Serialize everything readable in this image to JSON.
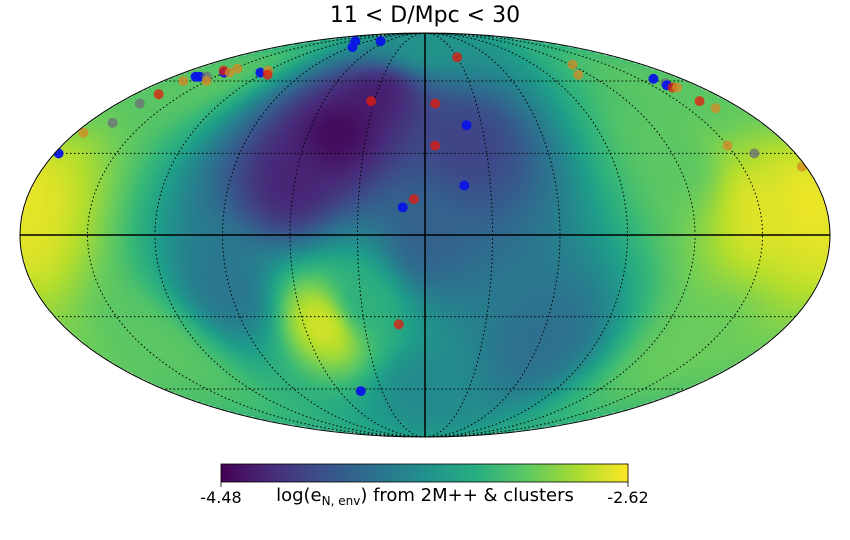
{
  "chart_data": {
    "type": "heatmap",
    "title": "11 < D/Mpc < 30",
    "projection": "mollweide",
    "colormap": "viridis",
    "colorbar": {
      "min": -4.48,
      "max": -2.62,
      "min_label": "-4.48",
      "max_label": "-2.62",
      "label_prefix": "log(e",
      "label_subscript": "N, env",
      "label_suffix": ") from 2M++ & clusters"
    },
    "grid": true,
    "colors": {
      "blue": "#0a14e6",
      "red": "#e61a0a",
      "orange": "#d68a26",
      "gray": "#6e6e78"
    },
    "field_peaks": [
      {
        "lon": 0,
        "lat": 0,
        "level": -3.9
      },
      {
        "lon": 45,
        "lat": 38,
        "level": -4.45
      },
      {
        "lon": 60,
        "lat": 20,
        "level": -4.3
      },
      {
        "lon": 30,
        "lat": 55,
        "level": -4.35
      },
      {
        "lon": -20,
        "lat": 35,
        "level": -4.1
      },
      {
        "lon": 90,
        "lat": -20,
        "level": -3.75
      },
      {
        "lon": 50,
        "lat": -33,
        "level": -2.7
      },
      {
        "lon": 30,
        "lat": -25,
        "level": -3.3
      },
      {
        "lon": -150,
        "lat": 8,
        "level": -2.7
      },
      {
        "lon": -175,
        "lat": 10,
        "level": -2.65
      },
      {
        "lon": 178,
        "lat": 5,
        "level": -2.7
      },
      {
        "lon": -120,
        "lat": 30,
        "level": -3.1
      },
      {
        "lon": 140,
        "lat": -40,
        "level": -3.1
      },
      {
        "lon": -140,
        "lat": -40,
        "level": -3.05
      },
      {
        "lon": 0,
        "lat": -60,
        "level": -3.6
      },
      {
        "lon": 0,
        "lat": 75,
        "level": -3.5
      },
      {
        "lon": 150,
        "lat": 60,
        "level": -3.1
      },
      {
        "lon": -150,
        "lat": 55,
        "level": -3.1
      },
      {
        "lon": -60,
        "lat": -40,
        "level": -3.8
      }
    ],
    "points": [
      {
        "lon": 161,
        "lat": 62,
        "color": "blue"
      },
      {
        "lon": 164,
        "lat": 62,
        "color": "blue"
      },
      {
        "lon": 150,
        "lat": 64,
        "color": "blue"
      },
      {
        "lon": 154,
        "lat": 65,
        "color": "red"
      },
      {
        "lon": 156,
        "lat": 62,
        "color": "gray"
      },
      {
        "lon": 146,
        "lat": 64,
        "color": "orange"
      },
      {
        "lon": 165,
        "lat": 54,
        "color": "red"
      },
      {
        "lon": 167,
        "lat": 50,
        "color": "gray"
      },
      {
        "lon": 178,
        "lat": 30,
        "color": "blue"
      },
      {
        "lon": 176,
        "lat": 38,
        "color": "orange"
      },
      {
        "lon": 167,
        "lat": 42,
        "color": "gray"
      },
      {
        "lon": 123,
        "lat": 64,
        "color": "blue"
      },
      {
        "lon": 110,
        "lat": 82,
        "color": "blue"
      },
      {
        "lon": 70,
        "lat": 82,
        "color": "blue"
      },
      {
        "lon": 88,
        "lat": 78,
        "color": "blue"
      },
      {
        "lon": 120,
        "lat": 65,
        "color": "orange"
      },
      {
        "lon": 115,
        "lat": 63,
        "color": "red"
      },
      {
        "lon": 166,
        "lat": 60,
        "color": "orange"
      },
      {
        "lon": 150,
        "lat": 60,
        "color": "orange"
      },
      {
        "lon": 147,
        "lat": 66,
        "color": "orange"
      },
      {
        "lon": 32,
        "lat": 51,
        "color": "red"
      },
      {
        "lon": 10,
        "lat": 10,
        "color": "blue"
      },
      {
        "lon": 5,
        "lat": 13,
        "color": "red"
      },
      {
        "lon": -5,
        "lat": 33,
        "color": "red"
      },
      {
        "lon": -6,
        "lat": 50,
        "color": "red"
      },
      {
        "lon": -22,
        "lat": 41,
        "color": "blue"
      },
      {
        "lon": -18,
        "lat": 18,
        "color": "blue"
      },
      {
        "lon": -30,
        "lat": 72,
        "color": "red"
      },
      {
        "lon": 13,
        "lat": -33,
        "color": "red"
      },
      {
        "lon": 45,
        "lat": -61,
        "color": "blue"
      },
      {
        "lon": -122,
        "lat": 68,
        "color": "orange"
      },
      {
        "lon": -112,
        "lat": 63,
        "color": "orange"
      },
      {
        "lon": -160,
        "lat": 61,
        "color": "blue"
      },
      {
        "lon": -162,
        "lat": 59,
        "color": "gray"
      },
      {
        "lon": -160,
        "lat": 58,
        "color": "blue"
      },
      {
        "lon": -161,
        "lat": 57,
        "color": "red"
      },
      {
        "lon": -164,
        "lat": 57,
        "color": "orange"
      },
      {
        "lon": -163,
        "lat": 51,
        "color": "red"
      },
      {
        "lon": -166,
        "lat": 48,
        "color": "orange"
      },
      {
        "lon": -150,
        "lat": 33,
        "color": "orange"
      },
      {
        "lon": -160,
        "lat": 30,
        "color": "gray"
      },
      {
        "lon": -178,
        "lat": 25,
        "color": "orange"
      }
    ]
  }
}
